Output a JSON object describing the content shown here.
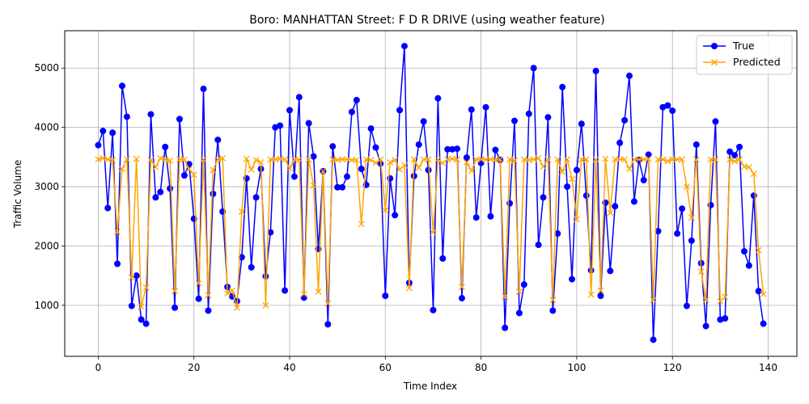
{
  "chart_data": {
    "type": "line",
    "title": "Boro: MANHATTAN Street: F D R DRIVE (using weather feature)",
    "xlabel": "Time Index",
    "ylabel": "Traffic Volume",
    "xlim": [
      -7,
      146
    ],
    "ylim": [
      140,
      5630
    ],
    "xticks": [
      0,
      20,
      40,
      60,
      80,
      100,
      120,
      140
    ],
    "yticks": [
      1000,
      2000,
      3000,
      4000,
      5000
    ],
    "grid": true,
    "legend_position": "top-right",
    "series": [
      {
        "name": "True",
        "color": "#0000ff",
        "marker": "circle",
        "values": [
          3700,
          3940,
          2640,
          3910,
          1700,
          4700,
          4180,
          990,
          1500,
          760,
          690,
          4220,
          2820,
          2910,
          3670,
          2970,
          960,
          4140,
          3190,
          3380,
          2460,
          1110,
          4650,
          910,
          2880,
          3790,
          2580,
          1310,
          1150,
          1070,
          1810,
          3140,
          1640,
          2820,
          3300,
          1490,
          2230,
          4000,
          4030,
          1250,
          4290,
          3170,
          4510,
          1130,
          4070,
          3510,
          1950,
          3260,
          680,
          3680,
          2990,
          2990,
          3170,
          4260,
          4460,
          3300,
          3030,
          3980,
          3660,
          3390,
          1160,
          3140,
          2520,
          4290,
          5370,
          1380,
          3180,
          3710,
          4100,
          3280,
          920,
          4490,
          1790,
          3630,
          3630,
          3640,
          1120,
          3490,
          4300,
          2480,
          3400,
          4340,
          2500,
          3620,
          3450,
          620,
          2720,
          4110,
          870,
          1350,
          4230,
          5000,
          2020,
          2820,
          4170,
          910,
          2210,
          4680,
          3000,
          1440,
          3280,
          4060,
          2850,
          1590,
          4950,
          1160,
          2730,
          1580,
          2670,
          3740,
          4120,
          4870,
          2750,
          3450,
          3110,
          3540,
          420,
          2250,
          4340,
          4370,
          4280,
          2210,
          2630,
          990,
          2090,
          3710,
          1710,
          650,
          2690,
          4100,
          760,
          780,
          3590,
          3530,
          3670,
          1910,
          1670,
          2850,
          1240,
          690
        ]
      },
      {
        "name": "Predicted",
        "color": "#ffa500",
        "marker": "x",
        "values": [
          3460,
          3480,
          3460,
          3450,
          2240,
          3300,
          3460,
          1470,
          3470,
          980,
          1300,
          3450,
          3330,
          3480,
          3460,
          3440,
          1240,
          3460,
          3460,
          3300,
          3200,
          1370,
          3460,
          1170,
          3280,
          3460,
          3480,
          1200,
          1250,
          960,
          2580,
          3470,
          3290,
          3450,
          3410,
          1000,
          3460,
          3460,
          3470,
          3460,
          3310,
          3460,
          3460,
          1190,
          3460,
          3020,
          1230,
          3260,
          1030,
          3460,
          3450,
          3460,
          3460,
          3450,
          3450,
          2370,
          3460,
          3450,
          3400,
          3460,
          2600,
          3410,
          3450,
          3290,
          3360,
          1290,
          3460,
          3320,
          3460,
          3460,
          2230,
          3460,
          3400,
          3460,
          3470,
          3460,
          1310,
          3410,
          3270,
          3460,
          3460,
          3460,
          3460,
          3450,
          3460,
          1150,
          3460,
          3440,
          1230,
          3460,
          3450,
          3460,
          3480,
          3340,
          3460,
          1090,
          3460,
          3250,
          3460,
          3130,
          2450,
          3460,
          3460,
          1180,
          3460,
          1250,
          3470,
          2560,
          3460,
          3460,
          3460,
          3300,
          3460,
          3460,
          3460,
          3470,
          1090,
          3460,
          3460,
          3430,
          3460,
          3460,
          3460,
          3000,
          2480,
          3460,
          1570,
          1090,
          3460,
          3460,
          1070,
          1140,
          3460,
          3430,
          3460,
          3340,
          3330,
          3220,
          1930,
          1190
        ]
      }
    ]
  }
}
